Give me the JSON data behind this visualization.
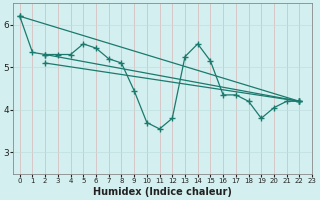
{
  "xlabel": "Humidex (Indice chaleur)",
  "bg_color": "#d4efef",
  "line_color": "#1a7a6e",
  "grid_color": "#c0dede",
  "xlim": [
    -0.5,
    23
  ],
  "ylim": [
    2.5,
    6.5
  ],
  "yticks": [
    3,
    4,
    5,
    6
  ],
  "xticks": [
    0,
    1,
    2,
    3,
    4,
    5,
    6,
    7,
    8,
    9,
    10,
    11,
    12,
    13,
    14,
    15,
    16,
    17,
    18,
    19,
    20,
    21,
    22,
    23
  ],
  "lines": [
    {
      "x": [
        0,
        1,
        2,
        3,
        4,
        5,
        6,
        7,
        8,
        9,
        10,
        11,
        12,
        13,
        14,
        15,
        16,
        17,
        18,
        19,
        20,
        21,
        22
      ],
      "y": [
        6.2,
        5.35,
        5.3,
        5.3,
        5.3,
        5.55,
        5.45,
        5.2,
        5.1,
        4.45,
        3.7,
        3.55,
        3.8,
        5.25,
        5.55,
        5.15,
        4.35,
        4.35,
        4.2,
        3.8,
        4.05,
        4.2,
        4.2
      ]
    },
    {
      "comment": "straight line from 0,6.2 to 22,4.2",
      "x": [
        0,
        22
      ],
      "y": [
        6.2,
        4.2
      ]
    },
    {
      "comment": "line from 2,5.3 to 22,4.2",
      "x": [
        2,
        22
      ],
      "y": [
        5.3,
        4.2
      ]
    },
    {
      "x": [
        2,
        22
      ],
      "y": [
        5.15,
        4.25
      ]
    }
  ]
}
